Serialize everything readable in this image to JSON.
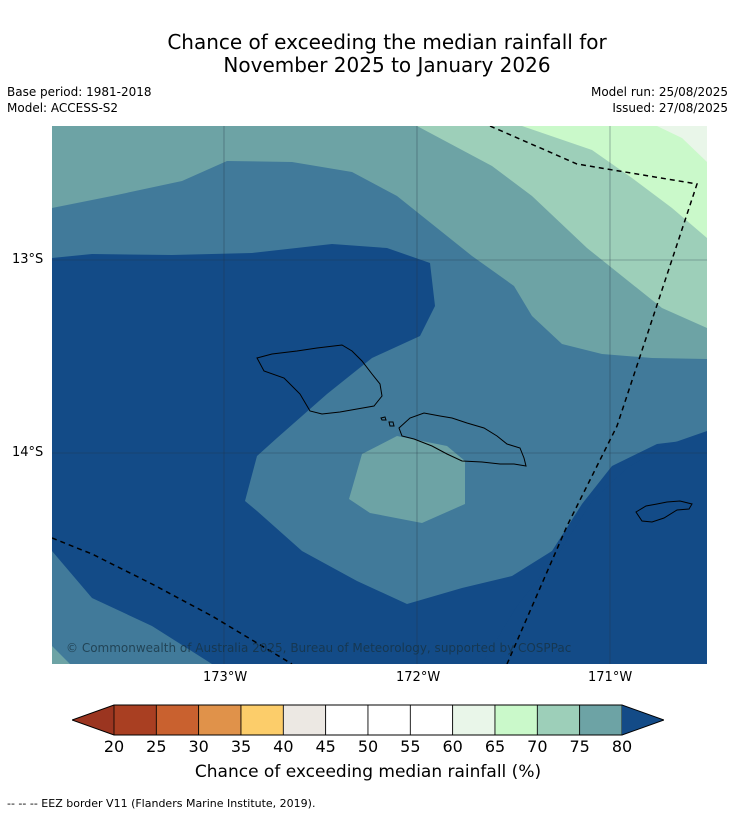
{
  "title": "Chance of exceeding the median rainfall for\nNovember 2025 to January 2026",
  "base_period": "Base period: 1981-2018",
  "model": "Model: ACCESS-S2",
  "model_run": "Model run: 25/08/2025",
  "issued": "Issued: 27/08/2025",
  "copyright": "© Commonwealth of Australia 2025, Bureau of Meteorology, supported by COSPPac",
  "axes": {
    "lat_labels": [
      "13°S",
      "14°S"
    ],
    "lon_labels": [
      "173°W",
      "172°W",
      "171°W"
    ]
  },
  "colorbar": {
    "label": "Chance of exceeding median rainfall (%)",
    "ticks": [
      "20",
      "25",
      "30",
      "35",
      "40",
      "45",
      "50",
      "55",
      "60",
      "65",
      "70",
      "75",
      "80"
    ],
    "colors": [
      "#a93f22",
      "#c9612f",
      "#e0924a",
      "#fccd6a",
      "#ece8e3",
      "#ffffff",
      "#ffffff",
      "#ffffff",
      "#e9f6e9",
      "#caf9ca",
      "#9dcfb9",
      "#6da3a5",
      "#417a9a"
    ],
    "under_color": "#9b3520",
    "over_color": "#134b87"
  },
  "map_colors": {
    "band_80": "#134b87",
    "band_75_80": "#417a9a",
    "band_70_75": "#6da3a5",
    "band_65_70": "#9dcfb9",
    "band_60_65": "#caf9ca",
    "band_55_60": "#e9f6e9"
  },
  "footnote": "--  --  -- EEZ border V11 (Flanders Marine Institute, 2019)."
}
